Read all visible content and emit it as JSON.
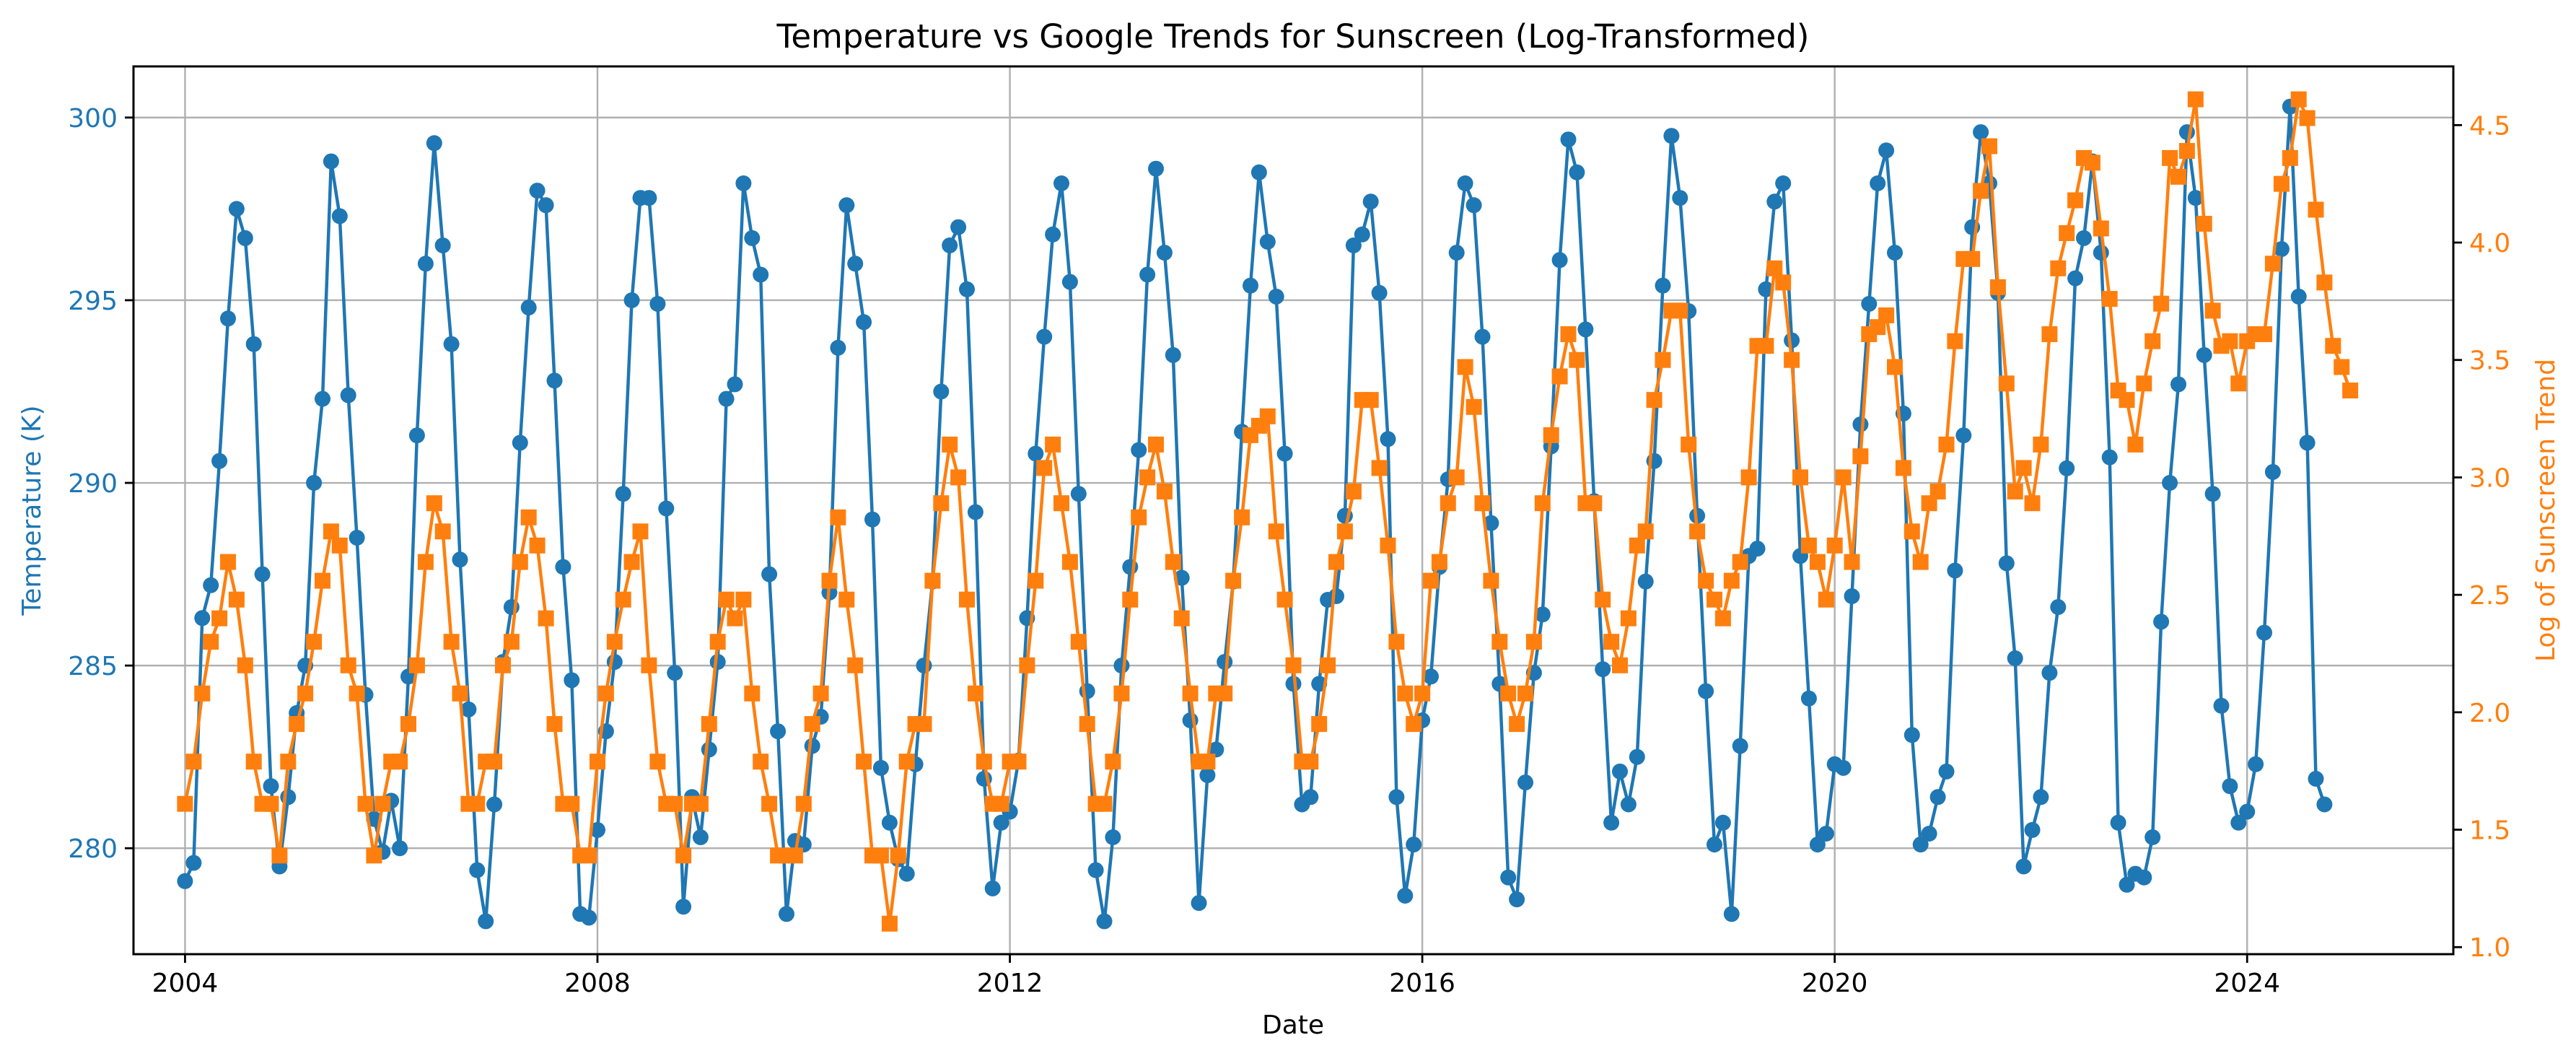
{
  "chart_data": {
    "type": "line",
    "title": "Temperature vs Google Trends for Sunscreen (Log-Transformed)",
    "xlabel": "Date",
    "ylabel_left": "Temperature (K)",
    "ylabel_right": "Log of Sunscreen Trend",
    "x_ticks": [
      "2004",
      "2008",
      "2012",
      "2016",
      "2020",
      "2024"
    ],
    "y_left_ticks": [
      "280",
      "285",
      "290",
      "295",
      "300"
    ],
    "y_right_ticks": [
      "1.0",
      "1.5",
      "2.0",
      "2.5",
      "3.0",
      "3.5",
      "4.0",
      "4.5"
    ],
    "xlim": [
      "2003-07",
      "2026-01"
    ],
    "ylim_left": [
      277.1,
      301.4
    ],
    "ylim_right": [
      0.97,
      4.75
    ],
    "grid": true,
    "x_start": "2004-01",
    "x_step": "1 month",
    "series": [
      {
        "axis": "left",
        "color": "#1f77b4",
        "marker": "circle",
        "values": [
          279.1,
          279.6,
          286.3,
          287.2,
          290.6,
          294.5,
          297.5,
          296.7,
          293.8,
          287.5,
          281.7,
          279.5,
          281.4,
          283.7,
          285.0,
          290.0,
          292.3,
          298.8,
          297.3,
          292.4,
          288.5,
          284.2,
          280.8,
          279.9,
          281.3,
          280.0,
          284.7,
          291.3,
          296.0,
          299.3,
          296.5,
          293.8,
          287.9,
          283.8,
          279.4,
          278.0,
          281.2,
          285.1,
          286.6,
          291.1,
          294.8,
          298.0,
          297.6,
          292.8,
          287.7,
          284.6,
          278.2,
          278.1,
          280.5,
          283.2,
          285.1,
          289.7,
          295.0,
          297.8,
          297.8,
          294.9,
          289.3,
          284.8,
          278.4,
          281.4,
          280.3,
          282.7,
          285.1,
          292.3,
          292.7,
          298.2,
          296.7,
          295.7,
          287.5,
          283.2,
          278.2,
          280.2,
          280.1,
          282.8,
          283.6,
          287.0,
          293.7,
          297.6,
          296.0,
          294.4,
          289.0,
          282.2,
          280.7,
          279.7,
          279.3,
          282.3,
          285.0,
          287.3,
          292.5,
          296.5,
          297.0,
          295.3,
          289.2,
          281.9,
          278.9,
          280.7,
          281.0,
          282.4,
          286.3,
          290.8,
          294.0,
          296.8,
          298.2,
          295.5,
          289.7,
          284.3,
          279.4,
          278.0,
          280.3,
          285.0,
          287.7,
          290.9,
          295.7,
          298.6,
          296.3,
          293.5,
          287.4,
          283.5,
          278.5,
          282.0,
          282.7,
          285.1,
          287.3,
          291.4,
          295.4,
          298.5,
          296.6,
          295.1,
          290.8,
          284.5,
          281.2,
          281.4,
          284.5,
          286.8,
          286.9,
          289.1,
          296.5,
          296.8,
          297.7,
          295.2,
          291.2,
          281.4,
          278.7,
          280.1,
          283.5,
          284.7,
          287.7,
          290.1,
          296.3,
          298.2,
          297.6,
          294.0,
          288.9,
          284.5,
          279.2,
          278.6,
          281.8,
          284.8,
          286.4,
          291.0,
          296.1,
          299.4,
          298.5,
          294.2,
          289.5,
          284.9,
          280.7,
          282.1,
          281.2,
          282.5,
          287.3,
          290.6,
          295.4,
          299.5,
          297.8,
          294.7,
          289.1,
          284.3,
          280.1,
          280.7,
          278.2,
          282.8,
          288.0,
          288.2,
          295.3,
          297.7,
          298.2,
          293.9,
          288.0,
          284.1,
          280.1,
          280.4,
          282.3,
          282.2,
          286.9,
          291.6,
          294.9,
          298.2,
          299.1,
          296.3,
          291.9,
          283.1,
          280.1,
          280.4,
          281.4,
          282.1,
          287.6,
          291.3,
          297.0,
          299.6,
          298.2,
          295.2,
          287.8,
          285.2,
          279.5,
          280.5,
          281.4,
          284.8,
          286.6,
          290.4,
          295.6,
          296.7,
          298.8,
          296.3,
          290.7,
          280.7,
          279.0,
          279.3,
          279.2,
          280.3,
          286.2,
          290.0,
          292.7,
          299.6,
          297.8,
          293.5,
          289.7,
          283.9,
          281.7,
          280.7,
          281.0,
          282.3,
          285.9,
          290.3,
          296.4,
          300.3,
          295.1,
          291.1,
          281.9,
          281.2
        ]
      },
      {
        "axis": "right",
        "color": "#ff7f0e",
        "marker": "square",
        "values": [
          1.61,
          1.79,
          2.08,
          2.3,
          2.4,
          2.64,
          2.48,
          2.2,
          1.79,
          1.61,
          1.61,
          1.39,
          1.79,
          1.95,
          2.08,
          2.3,
          2.56,
          2.77,
          2.71,
          2.2,
          2.08,
          1.61,
          1.39,
          1.61,
          1.79,
          1.79,
          1.95,
          2.2,
          2.64,
          2.89,
          2.77,
          2.3,
          2.08,
          1.61,
          1.61,
          1.79,
          1.79,
          2.2,
          2.3,
          2.64,
          2.83,
          2.71,
          2.4,
          1.95,
          1.61,
          1.61,
          1.39,
          1.39,
          1.79,
          2.08,
          2.3,
          2.48,
          2.64,
          2.77,
          2.2,
          1.79,
          1.61,
          1.61,
          1.39,
          1.61,
          1.61,
          1.95,
          2.3,
          2.48,
          2.4,
          2.48,
          2.08,
          1.79,
          1.61,
          1.39,
          1.39,
          1.39,
          1.61,
          1.95,
          2.08,
          2.56,
          2.83,
          2.48,
          2.2,
          1.79,
          1.39,
          1.39,
          1.1,
          1.39,
          1.79,
          1.95,
          1.95,
          2.56,
          2.89,
          3.14,
          3.0,
          2.48,
          2.08,
          1.79,
          1.61,
          1.61,
          1.79,
          1.79,
          2.2,
          2.56,
          3.04,
          3.14,
          2.89,
          2.64,
          2.3,
          1.95,
          1.61,
          1.61,
          1.79,
          2.08,
          2.48,
          2.83,
          3.0,
          3.14,
          2.94,
          2.64,
          2.4,
          2.08,
          1.79,
          1.79,
          2.08,
          2.08,
          2.56,
          2.83,
          3.18,
          3.22,
          3.26,
          2.77,
          2.48,
          2.2,
          1.79,
          1.79,
          1.95,
          2.2,
          2.64,
          2.77,
          2.94,
          3.33,
          3.33,
          3.04,
          2.71,
          2.3,
          2.08,
          1.95,
          2.08,
          2.56,
          2.64,
          2.89,
          3.0,
          3.47,
          3.3,
          2.89,
          2.56,
          2.3,
          2.08,
          1.95,
          2.08,
          2.3,
          2.89,
          3.18,
          3.43,
          3.61,
          3.5,
          2.89,
          2.89,
          2.48,
          2.3,
          2.2,
          2.4,
          2.71,
          2.77,
          3.33,
          3.5,
          3.71,
          3.71,
          3.14,
          2.77,
          2.56,
          2.48,
          2.4,
          2.56,
          2.64,
          3.0,
          3.56,
          3.56,
          3.89,
          3.83,
          3.5,
          3.0,
          2.71,
          2.64,
          2.48,
          2.71,
          3.0,
          2.64,
          3.09,
          3.61,
          3.64,
          3.69,
          3.47,
          3.04,
          2.77,
          2.64,
          2.89,
          2.94,
          3.14,
          3.58,
          3.93,
          3.93,
          4.22,
          4.41,
          3.81,
          3.4,
          2.94,
          3.04,
          2.89,
          3.14,
          3.61,
          3.89,
          4.04,
          4.18,
          4.36,
          4.34,
          4.06,
          3.76,
          3.37,
          3.33,
          3.14,
          3.4,
          3.58,
          3.74,
          4.36,
          4.28,
          4.39,
          4.61,
          4.08,
          3.71,
          3.56,
          3.58,
          3.4,
          3.58,
          3.61,
          3.61,
          3.91,
          4.25,
          4.36,
          4.61,
          4.53,
          4.14,
          3.83,
          3.56,
          3.47,
          3.37
        ]
      }
    ]
  }
}
